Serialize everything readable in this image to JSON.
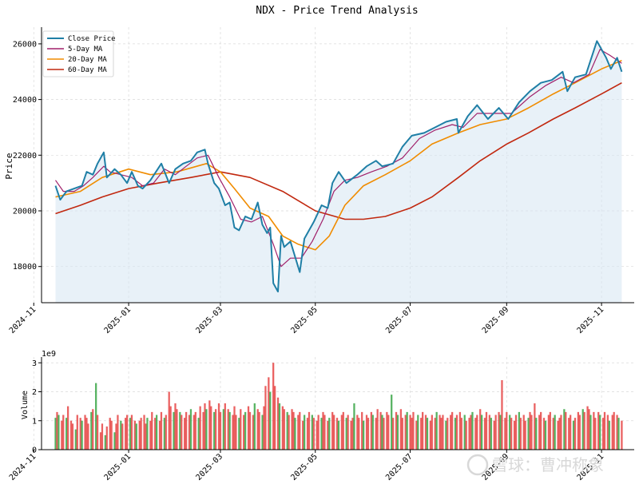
{
  "colors": {
    "close": "#1f7fa6",
    "ma5": "#a0206a",
    "ma20": "#f08c00",
    "ma60": "#c1280f",
    "fill": "#d6e6f2",
    "vol_up": "#3aa646",
    "vol_down": "#e64545",
    "grid": "#d9d9d9"
  },
  "chart_data": [
    {
      "type": "line",
      "title": "NDX - Price Trend Analysis",
      "xlabel": "",
      "ylabel": "Price",
      "ylim": [
        16700,
        26600
      ],
      "xlim": [
        "2024-11-06",
        "2025-11-22"
      ],
      "yticks": [
        18000,
        20000,
        22000,
        24000,
        26000
      ],
      "xticks": [
        "2024-11",
        "2025-01",
        "2025-03",
        "2025-05",
        "2025-07",
        "2025-09",
        "2025-11"
      ],
      "grid": true,
      "legend_position": "top-left",
      "start_date": "2024-11-15",
      "end_date": "2025-11-14",
      "series": [
        {
          "name": "Close Price",
          "values": [
            [
              "2024-11-15",
              20900
            ],
            [
              "2024-11-18",
              20400
            ],
            [
              "2024-11-22",
              20700
            ],
            [
              "2024-11-27",
              20800
            ],
            [
              "2024-12-02",
              20900
            ],
            [
              "2024-12-05",
              21400
            ],
            [
              "2024-12-09",
              21300
            ],
            [
              "2024-12-12",
              21700
            ],
            [
              "2024-12-16",
              22100
            ],
            [
              "2024-12-18",
              21200
            ],
            [
              "2024-12-23",
              21500
            ],
            [
              "2024-12-27",
              21300
            ],
            [
              "2024-12-31",
              21000
            ],
            [
              "2025-01-03",
              21400
            ],
            [
              "2025-01-07",
              20900
            ],
            [
              "2025-01-10",
              20800
            ],
            [
              "2025-01-15",
              21100
            ],
            [
              "2025-01-22",
              21700
            ],
            [
              "2025-01-27",
              21000
            ],
            [
              "2025-01-31",
              21500
            ],
            [
              "2025-02-05",
              21700
            ],
            [
              "2025-02-10",
              21800
            ],
            [
              "2025-02-14",
              22100
            ],
            [
              "2025-02-19",
              22200
            ],
            [
              "2025-02-21",
              21700
            ],
            [
              "2025-02-25",
              21000
            ],
            [
              "2025-02-28",
              20800
            ],
            [
              "2025-03-04",
              20200
            ],
            [
              "2025-03-07",
              20300
            ],
            [
              "2025-03-10",
              19400
            ],
            [
              "2025-03-13",
              19300
            ],
            [
              "2025-03-17",
              19800
            ],
            [
              "2025-03-21",
              19700
            ],
            [
              "2025-03-25",
              20300
            ],
            [
              "2025-03-28",
              19500
            ],
            [
              "2025-03-31",
              19200
            ],
            [
              "2025-04-02",
              19400
            ],
            [
              "2025-04-04",
              17400
            ],
            [
              "2025-04-07",
              17100
            ],
            [
              "2025-04-09",
              19100
            ],
            [
              "2025-04-11",
              18700
            ],
            [
              "2025-04-15",
              18900
            ],
            [
              "2025-04-21",
              17800
            ],
            [
              "2025-04-24",
              19000
            ],
            [
              "2025-04-30",
              19600
            ],
            [
              "2025-05-05",
              20200
            ],
            [
              "2025-05-09",
              20100
            ],
            [
              "2025-05-12",
              21000
            ],
            [
              "2025-05-16",
              21400
            ],
            [
              "2025-05-21",
              21000
            ],
            [
              "2025-05-28",
              21300
            ],
            [
              "2025-06-03",
              21600
            ],
            [
              "2025-06-09",
              21800
            ],
            [
              "2025-06-13",
              21600
            ],
            [
              "2025-06-20",
              21700
            ],
            [
              "2025-06-26",
              22300
            ],
            [
              "2025-07-02",
              22700
            ],
            [
              "2025-07-10",
              22800
            ],
            [
              "2025-07-17",
              23000
            ],
            [
              "2025-07-24",
              23200
            ],
            [
              "2025-07-31",
              23300
            ],
            [
              "2025-08-01",
              22800
            ],
            [
              "2025-08-07",
              23400
            ],
            [
              "2025-08-13",
              23800
            ],
            [
              "2025-08-20",
              23300
            ],
            [
              "2025-08-27",
              23700
            ],
            [
              "2025-09-02",
              23300
            ],
            [
              "2025-09-09",
              23900
            ],
            [
              "2025-09-16",
              24300
            ],
            [
              "2025-09-23",
              24600
            ],
            [
              "2025-09-30",
              24700
            ],
            [
              "2025-10-07",
              25000
            ],
            [
              "2025-10-10",
              24300
            ],
            [
              "2025-10-15",
              24800
            ],
            [
              "2025-10-22",
              24900
            ],
            [
              "2025-10-29",
              26100
            ],
            [
              "2025-11-04",
              25500
            ],
            [
              "2025-11-07",
              25100
            ],
            [
              "2025-11-11",
              25500
            ],
            [
              "2025-11-14",
              25000
            ]
          ]
        },
        {
          "name": "5-Day MA",
          "values": [
            [
              "2024-11-15",
              21100
            ],
            [
              "2024-11-20",
              20700
            ],
            [
              "2024-11-27",
              20700
            ],
            [
              "2024-12-03",
              20900
            ],
            [
              "2024-12-09",
              21200
            ],
            [
              "2024-12-16",
              21600
            ],
            [
              "2024-12-20",
              21400
            ],
            [
              "2024-12-27",
              21300
            ],
            [
              "2025-01-03",
              21200
            ],
            [
              "2025-01-10",
              20900
            ],
            [
              "2025-01-17",
              21000
            ],
            [
              "2025-01-24",
              21500
            ],
            [
              "2025-01-31",
              21300
            ],
            [
              "2025-02-07",
              21600
            ],
            [
              "2025-02-14",
              21900
            ],
            [
              "2025-02-21",
              22000
            ],
            [
              "2025-02-28",
              21200
            ],
            [
              "2025-03-07",
              20500
            ],
            [
              "2025-03-14",
              19700
            ],
            [
              "2025-03-21",
              19600
            ],
            [
              "2025-03-28",
              19800
            ],
            [
              "2025-04-04",
              18800
            ],
            [
              "2025-04-09",
              18000
            ],
            [
              "2025-04-15",
              18300
            ],
            [
              "2025-04-22",
              18300
            ],
            [
              "2025-04-29",
              18900
            ],
            [
              "2025-05-06",
              19700
            ],
            [
              "2025-05-13",
              20700
            ],
            [
              "2025-05-20",
              21100
            ],
            [
              "2025-05-28",
              21200
            ],
            [
              "2025-06-06",
              21400
            ],
            [
              "2025-06-16",
              21600
            ],
            [
              "2025-06-26",
              21900
            ],
            [
              "2025-07-07",
              22600
            ],
            [
              "2025-07-17",
              22900
            ],
            [
              "2025-07-28",
              23100
            ],
            [
              "2025-08-04",
              23000
            ],
            [
              "2025-08-13",
              23500
            ],
            [
              "2025-08-25",
              23500
            ],
            [
              "2025-09-04",
              23500
            ],
            [
              "2025-09-16",
              24100
            ],
            [
              "2025-09-26",
              24500
            ],
            [
              "2025-10-06",
              24800
            ],
            [
              "2025-10-14",
              24600
            ],
            [
              "2025-10-24",
              24900
            ],
            [
              "2025-10-31",
              25800
            ],
            [
              "2025-11-06",
              25600
            ],
            [
              "2025-11-14",
              25300
            ]
          ]
        },
        {
          "name": "20-Day MA",
          "values": [
            [
              "2024-11-15",
              20500
            ],
            [
              "2024-12-01",
              20700
            ],
            [
              "2024-12-15",
              21200
            ],
            [
              "2025-01-01",
              21500
            ],
            [
              "2025-01-15",
              21300
            ],
            [
              "2025-02-01",
              21400
            ],
            [
              "2025-02-20",
              21700
            ],
            [
              "2025-03-01",
              21400
            ],
            [
              "2025-03-10",
              20800
            ],
            [
              "2025-03-20",
              20100
            ],
            [
              "2025-04-01",
              19800
            ],
            [
              "2025-04-10",
              19100
            ],
            [
              "2025-04-20",
              18800
            ],
            [
              "2025-05-01",
              18600
            ],
            [
              "2025-05-10",
              19100
            ],
            [
              "2025-05-20",
              20200
            ],
            [
              "2025-06-01",
              20900
            ],
            [
              "2025-06-15",
              21300
            ],
            [
              "2025-07-01",
              21800
            ],
            [
              "2025-07-15",
              22400
            ],
            [
              "2025-08-01",
              22800
            ],
            [
              "2025-08-15",
              23100
            ],
            [
              "2025-09-01",
              23300
            ],
            [
              "2025-09-15",
              23700
            ],
            [
              "2025-10-01",
              24200
            ],
            [
              "2025-10-15",
              24600
            ],
            [
              "2025-11-01",
              25100
            ],
            [
              "2025-11-14",
              25400
            ]
          ]
        },
        {
          "name": "60-Day MA",
          "values": [
            [
              "2024-11-15",
              19900
            ],
            [
              "2024-12-01",
              20200
            ],
            [
              "2024-12-15",
              20500
            ],
            [
              "2025-01-01",
              20800
            ],
            [
              "2025-01-20",
              21000
            ],
            [
              "2025-02-10",
              21200
            ],
            [
              "2025-03-01",
              21400
            ],
            [
              "2025-03-20",
              21200
            ],
            [
              "2025-04-10",
              20700
            ],
            [
              "2025-05-01",
              20000
            ],
            [
              "2025-05-20",
              19700
            ],
            [
              "2025-06-01",
              19700
            ],
            [
              "2025-06-15",
              19800
            ],
            [
              "2025-07-01",
              20100
            ],
            [
              "2025-07-15",
              20500
            ],
            [
              "2025-08-01",
              21200
            ],
            [
              "2025-08-15",
              21800
            ],
            [
              "2025-09-01",
              22400
            ],
            [
              "2025-09-15",
              22800
            ],
            [
              "2025-10-01",
              23300
            ],
            [
              "2025-10-15",
              23700
            ],
            [
              "2025-11-01",
              24200
            ],
            [
              "2025-11-14",
              24600
            ]
          ]
        }
      ]
    },
    {
      "type": "bar",
      "xlabel": "",
      "ylabel": "Volume",
      "scale_label": "1e9",
      "ylim": [
        0,
        3.2
      ],
      "yticks": [
        0,
        1,
        2,
        3
      ],
      "grid": true,
      "up_days": [
        0,
        2,
        5,
        9,
        12,
        16,
        18,
        22,
        26,
        29,
        33,
        36,
        41,
        45,
        48,
        52,
        55,
        60,
        63,
        67,
        70,
        74,
        77,
        81,
        84,
        88,
        91,
        95,
        99,
        102,
        106,
        110,
        113,
        117,
        121,
        125,
        128,
        132,
        136,
        140,
        144,
        148,
        151,
        155,
        160,
        164,
        168,
        172,
        176,
        180,
        184,
        188,
        192,
        196,
        200,
        204,
        208,
        212,
        216,
        220,
        224,
        228,
        232,
        236,
        240,
        244,
        248
      ],
      "values": [
        1.1,
        1.3,
        1.2,
        1.0,
        1.2,
        1.1,
        1.5,
        1.0,
        0.9,
        0.7,
        1.2,
        1.1,
        1.0,
        1.2,
        1.1,
        0.9,
        1.3,
        1.4,
        2.3,
        1.2,
        0.6,
        0.9,
        0.5,
        0.8,
        1.1,
        1.0,
        0.6,
        0.9,
        1.2,
        1.0,
        0.9,
        1.1,
        1.2,
        1.1,
        1.2,
        1.0,
        0.9,
        1.0,
        1.1,
        1.2,
        0.9,
        1.1,
        1.0,
        1.3,
        1.1,
        1.2,
        1.0,
        1.3,
        1.1,
        1.2,
        2.0,
        1.5,
        1.3,
        1.6,
        1.4,
        1.3,
        1.2,
        1.1,
        1.3,
        1.2,
        1.4,
        1.2,
        1.3,
        1.1,
        1.5,
        1.3,
        1.6,
        1.4,
        1.7,
        1.5,
        1.3,
        1.4,
        1.6,
        1.3,
        1.4,
        1.6,
        1.4,
        1.3,
        1.2,
        1.5,
        1.2,
        1.1,
        1.4,
        1.2,
        1.3,
        1.5,
        1.3,
        1.2,
        1.6,
        1.4,
        1.3,
        1.2,
        1.5,
        2.2,
        2.5,
        2.0,
        3.0,
        2.2,
        1.8,
        1.6,
        1.5,
        1.4,
        1.3,
        1.2,
        1.4,
        1.3,
        1.1,
        1.2,
        1.3,
        1.0,
        1.2,
        1.1,
        1.3,
        1.2,
        1.1,
        1.0,
        1.2,
        1.1,
        1.3,
        1.2,
        1.0,
        1.1,
        1.3,
        1.2,
        1.1,
        1.0,
        1.2,
        1.3,
        1.1,
        1.2,
        1.0,
        1.1,
        1.6,
        1.2,
        1.1,
        1.3,
        1.0,
        1.2,
        1.1,
        1.3,
        1.2,
        1.1,
        1.4,
        1.3,
        1.2,
        1.1,
        1.3,
        1.2,
        1.9,
        1.1,
        1.3,
        1.2,
        1.4,
        1.1,
        1.2,
        1.3,
        1.2,
        1.1,
        1.3,
        1.0,
        1.2,
        1.1,
        1.3,
        1.2,
        1.1,
        1.0,
        1.2,
        1.1,
        1.3,
        1.2,
        1.1,
        1.2,
        1.0,
        1.1,
        1.2,
        1.3,
        1.1,
        1.2,
        1.3,
        1.1,
        1.2,
        1.0,
        1.1,
        1.2,
        1.3,
        1.1,
        1.2,
        1.4,
        1.2,
        1.1,
        1.3,
        1.2,
        1.1,
        1.0,
        1.2,
        1.3,
        1.2,
        2.4,
        1.1,
        1.3,
        1.2,
        1.1,
        1.0,
        1.2,
        1.3,
        1.1,
        1.2,
        1.0,
        1.1,
        1.3,
        1.2,
        1.6,
        1.1,
        1.2,
        1.3,
        1.1,
        1.0,
        1.2,
        1.3,
        1.1,
        1.2,
        1.0,
        1.1,
        1.2,
        1.4,
        1.3,
        1.1,
        1.2,
        1.0,
        1.1,
        1.3,
        1.2,
        1.4,
        1.3,
        1.5,
        1.4,
        1.2,
        1.3,
        1.1,
        1.3,
        1.2,
        1.1,
        1.3,
        1.2,
        1.0,
        1.2,
        1.3,
        1.2,
        1.1,
        1.0
      ]
    }
  ],
  "watermark": "雪球：曹冲称象"
}
